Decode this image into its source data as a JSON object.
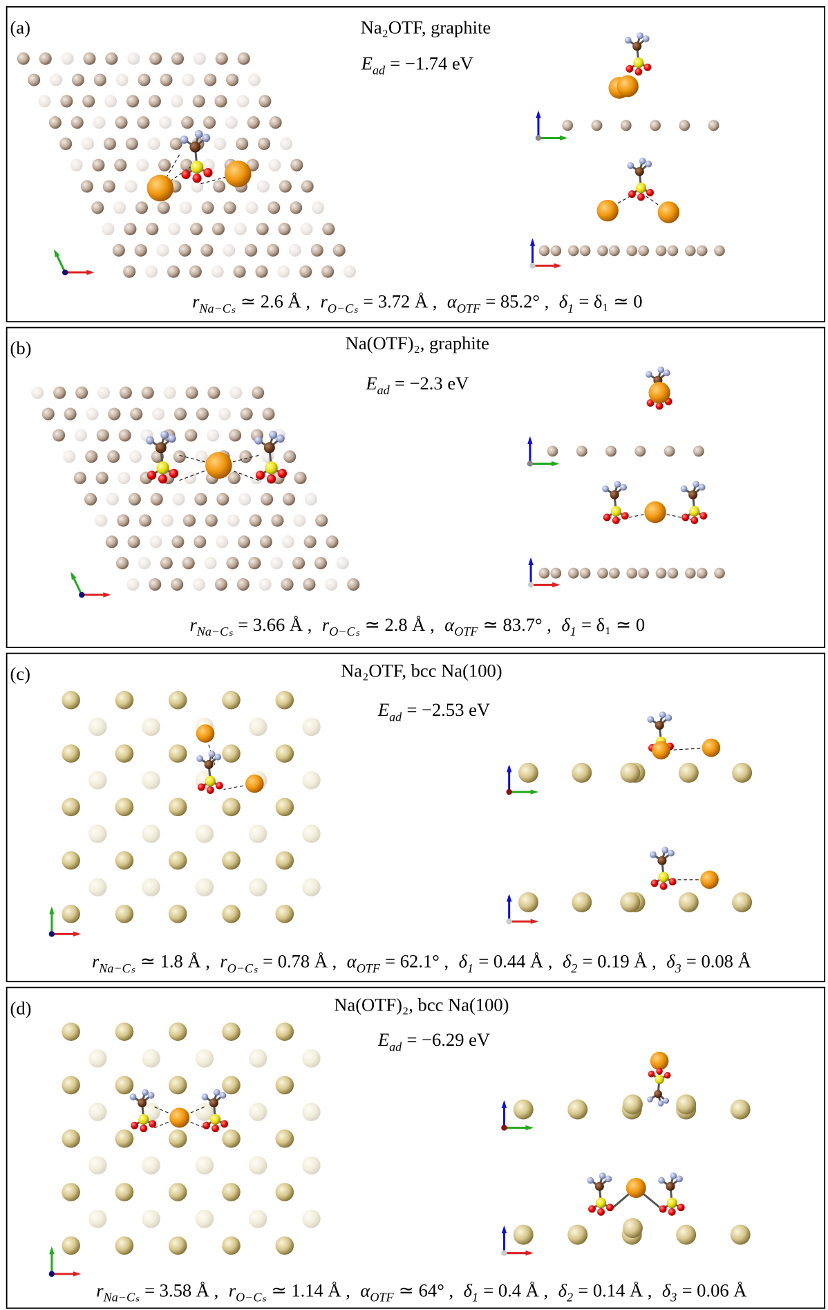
{
  "panels": [
    {
      "label": "(a)",
      "title": "Na₂OTF, graphite",
      "energy": {
        "symbol": "E",
        "sub": "ad",
        "value": "= −1.74 eV"
      },
      "params": [
        {
          "symbol": "r",
          "sub": "Na−Cₛ",
          "value": "≃ 2.6 Å ,"
        },
        {
          "symbol": "r",
          "sub": "O−Cₛ",
          "value": "= 3.72 Å ,"
        },
        {
          "symbol": "α",
          "sub": "OTF",
          "value": "= 85.2° ,"
        },
        {
          "symbol": "δ",
          "sub": "1",
          "value": "= δ₁ ≃ 0"
        }
      ]
    },
    {
      "label": "(b)",
      "title": "Na(OTF)₂, graphite",
      "energy": {
        "symbol": "E",
        "sub": "ad",
        "value": "= −2.3 eV"
      },
      "params": [
        {
          "symbol": "r",
          "sub": "Na−Cₛ",
          "value": "= 3.66 Å ,"
        },
        {
          "symbol": "r",
          "sub": "O−Cₛ",
          "value": "≃ 2.8 Å ,"
        },
        {
          "symbol": "α",
          "sub": "OTF",
          "value": "≃ 83.7° ,"
        },
        {
          "symbol": "δ",
          "sub": "1",
          "value": "= δ₁ ≃ 0"
        }
      ]
    },
    {
      "label": "(c)",
      "title": "Na₂OTF, bcc Na(100)",
      "energy": {
        "symbol": "E",
        "sub": "ad",
        "value": "= −2.53 eV"
      },
      "params": [
        {
          "symbol": "r",
          "sub": "Na−Cₛ",
          "value": "≃ 1.8 Å ,"
        },
        {
          "symbol": "r",
          "sub": "O−Cₛ",
          "value": "= 0.78 Å ,"
        },
        {
          "symbol": "α",
          "sub": "OTF",
          "value": "= 62.1° ,"
        },
        {
          "symbol": "δ",
          "sub": "1",
          "value": "= 0.44 Å ,"
        },
        {
          "symbol": "δ",
          "sub": "2",
          "value": "= 0.19 Å ,"
        },
        {
          "symbol": "δ",
          "sub": "3",
          "value": "= 0.08 Å"
        }
      ]
    },
    {
      "label": "(d)",
      "title": "Na(OTF)₂, bcc Na(100)",
      "energy": {
        "symbol": "E",
        "sub": "ad",
        "value": "= −6.29 eV"
      },
      "params": [
        {
          "symbol": "r",
          "sub": "Na−Cₛ",
          "value": "= 3.58 Å ,"
        },
        {
          "symbol": "r",
          "sub": "O−Cₛ",
          "value": "≃ 1.14 Å ,"
        },
        {
          "symbol": "α",
          "sub": "OTF",
          "value": "≃ 64° ,"
        },
        {
          "symbol": "δ",
          "sub": "1",
          "value": "= 0.4 Å ,"
        },
        {
          "symbol": "δ",
          "sub": "2",
          "value": "= 0.14 Å ,"
        },
        {
          "symbol": "δ",
          "sub": "3",
          "value": "= 0.06 Å"
        }
      ]
    }
  ]
}
